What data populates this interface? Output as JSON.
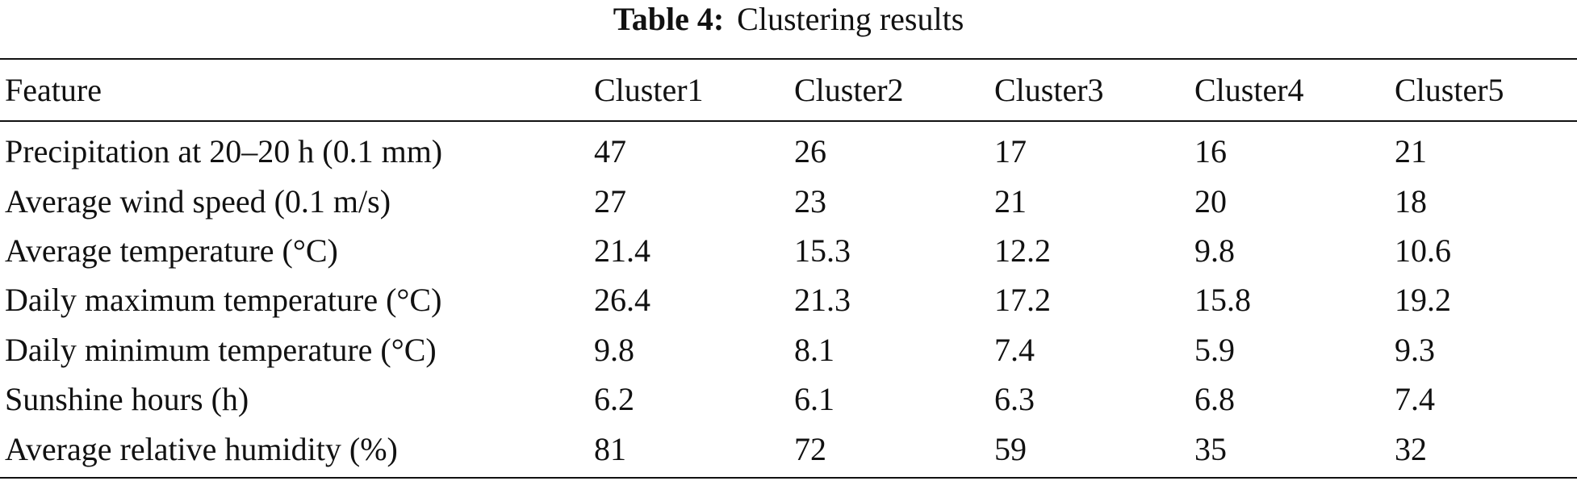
{
  "caption": {
    "label": "Table 4:",
    "text": "Clustering results"
  },
  "table": {
    "headers": [
      "Feature",
      "Cluster1",
      "Cluster2",
      "Cluster3",
      "Cluster4",
      "Cluster5"
    ],
    "rows": [
      [
        "Precipitation at 20–20 h (0.1 mm)",
        "47",
        "26",
        "17",
        "16",
        "21"
      ],
      [
        "Average wind speed (0.1 m/s)",
        "27",
        "23",
        "21",
        "20",
        "18"
      ],
      [
        "Average temperature (°C)",
        "21.4",
        "15.3",
        "12.2",
        "9.8",
        "10.6"
      ],
      [
        "Daily maximum temperature (°C)",
        "26.4",
        "21.3",
        "17.2",
        "15.8",
        "19.2"
      ],
      [
        "Daily minimum temperature (°C)",
        "9.8",
        "8.1",
        "7.4",
        "5.9",
        "9.3"
      ],
      [
        "Sunshine hours (h)",
        "6.2",
        "6.1",
        "6.3",
        "6.8",
        "7.4"
      ],
      [
        "Average relative humidity (%)",
        "81",
        "72",
        "59",
        "35",
        "32"
      ]
    ]
  }
}
